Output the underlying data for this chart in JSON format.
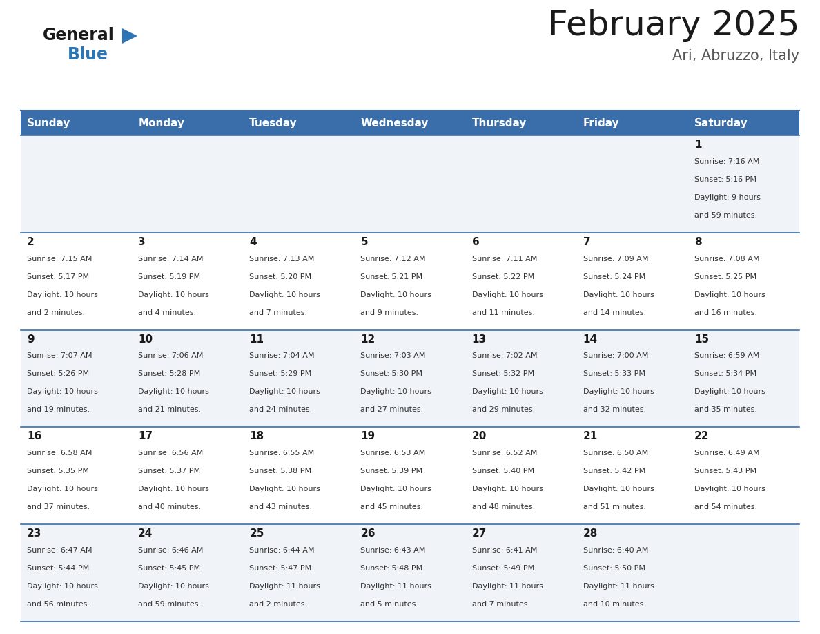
{
  "title": "February 2025",
  "subtitle": "Ari, Abruzzo, Italy",
  "header_color": "#3A6EAA",
  "header_text_color": "#FFFFFF",
  "cell_bg_even": "#FFFFFF",
  "cell_bg_odd": "#F0F4F8",
  "border_color": "#3A6EAA",
  "text_color": "#333333",
  "day_names": [
    "Sunday",
    "Monday",
    "Tuesday",
    "Wednesday",
    "Thursday",
    "Friday",
    "Saturday"
  ],
  "days": [
    {
      "day": 1,
      "col": 6,
      "row": 0,
      "sunrise": "7:16 AM",
      "sunset": "5:16 PM",
      "daylight": "9 hours and 59 minutes."
    },
    {
      "day": 2,
      "col": 0,
      "row": 1,
      "sunrise": "7:15 AM",
      "sunset": "5:17 PM",
      "daylight": "10 hours and 2 minutes."
    },
    {
      "day": 3,
      "col": 1,
      "row": 1,
      "sunrise": "7:14 AM",
      "sunset": "5:19 PM",
      "daylight": "10 hours and 4 minutes."
    },
    {
      "day": 4,
      "col": 2,
      "row": 1,
      "sunrise": "7:13 AM",
      "sunset": "5:20 PM",
      "daylight": "10 hours and 7 minutes."
    },
    {
      "day": 5,
      "col": 3,
      "row": 1,
      "sunrise": "7:12 AM",
      "sunset": "5:21 PM",
      "daylight": "10 hours and 9 minutes."
    },
    {
      "day": 6,
      "col": 4,
      "row": 1,
      "sunrise": "7:11 AM",
      "sunset": "5:22 PM",
      "daylight": "10 hours and 11 minutes."
    },
    {
      "day": 7,
      "col": 5,
      "row": 1,
      "sunrise": "7:09 AM",
      "sunset": "5:24 PM",
      "daylight": "10 hours and 14 minutes."
    },
    {
      "day": 8,
      "col": 6,
      "row": 1,
      "sunrise": "7:08 AM",
      "sunset": "5:25 PM",
      "daylight": "10 hours and 16 minutes."
    },
    {
      "day": 9,
      "col": 0,
      "row": 2,
      "sunrise": "7:07 AM",
      "sunset": "5:26 PM",
      "daylight": "10 hours and 19 minutes."
    },
    {
      "day": 10,
      "col": 1,
      "row": 2,
      "sunrise": "7:06 AM",
      "sunset": "5:28 PM",
      "daylight": "10 hours and 21 minutes."
    },
    {
      "day": 11,
      "col": 2,
      "row": 2,
      "sunrise": "7:04 AM",
      "sunset": "5:29 PM",
      "daylight": "10 hours and 24 minutes."
    },
    {
      "day": 12,
      "col": 3,
      "row": 2,
      "sunrise": "7:03 AM",
      "sunset": "5:30 PM",
      "daylight": "10 hours and 27 minutes."
    },
    {
      "day": 13,
      "col": 4,
      "row": 2,
      "sunrise": "7:02 AM",
      "sunset": "5:32 PM",
      "daylight": "10 hours and 29 minutes."
    },
    {
      "day": 14,
      "col": 5,
      "row": 2,
      "sunrise": "7:00 AM",
      "sunset": "5:33 PM",
      "daylight": "10 hours and 32 minutes."
    },
    {
      "day": 15,
      "col": 6,
      "row": 2,
      "sunrise": "6:59 AM",
      "sunset": "5:34 PM",
      "daylight": "10 hours and 35 minutes."
    },
    {
      "day": 16,
      "col": 0,
      "row": 3,
      "sunrise": "6:58 AM",
      "sunset": "5:35 PM",
      "daylight": "10 hours and 37 minutes."
    },
    {
      "day": 17,
      "col": 1,
      "row": 3,
      "sunrise": "6:56 AM",
      "sunset": "5:37 PM",
      "daylight": "10 hours and 40 minutes."
    },
    {
      "day": 18,
      "col": 2,
      "row": 3,
      "sunrise": "6:55 AM",
      "sunset": "5:38 PM",
      "daylight": "10 hours and 43 minutes."
    },
    {
      "day": 19,
      "col": 3,
      "row": 3,
      "sunrise": "6:53 AM",
      "sunset": "5:39 PM",
      "daylight": "10 hours and 45 minutes."
    },
    {
      "day": 20,
      "col": 4,
      "row": 3,
      "sunrise": "6:52 AM",
      "sunset": "5:40 PM",
      "daylight": "10 hours and 48 minutes."
    },
    {
      "day": 21,
      "col": 5,
      "row": 3,
      "sunrise": "6:50 AM",
      "sunset": "5:42 PM",
      "daylight": "10 hours and 51 minutes."
    },
    {
      "day": 22,
      "col": 6,
      "row": 3,
      "sunrise": "6:49 AM",
      "sunset": "5:43 PM",
      "daylight": "10 hours and 54 minutes."
    },
    {
      "day": 23,
      "col": 0,
      "row": 4,
      "sunrise": "6:47 AM",
      "sunset": "5:44 PM",
      "daylight": "10 hours and 56 minutes."
    },
    {
      "day": 24,
      "col": 1,
      "row": 4,
      "sunrise": "6:46 AM",
      "sunset": "5:45 PM",
      "daylight": "10 hours and 59 minutes."
    },
    {
      "day": 25,
      "col": 2,
      "row": 4,
      "sunrise": "6:44 AM",
      "sunset": "5:47 PM",
      "daylight": "11 hours and 2 minutes."
    },
    {
      "day": 26,
      "col": 3,
      "row": 4,
      "sunrise": "6:43 AM",
      "sunset": "5:48 PM",
      "daylight": "11 hours and 5 minutes."
    },
    {
      "day": 27,
      "col": 4,
      "row": 4,
      "sunrise": "6:41 AM",
      "sunset": "5:49 PM",
      "daylight": "11 hours and 7 minutes."
    },
    {
      "day": 28,
      "col": 5,
      "row": 4,
      "sunrise": "6:40 AM",
      "sunset": "5:50 PM",
      "daylight": "11 hours and 10 minutes."
    }
  ],
  "num_rows": 5,
  "logo_general_color": "#1A1A1A",
  "logo_blue_color": "#2E75B6",
  "logo_triangle_color": "#2E75B6",
  "title_fontsize": 36,
  "subtitle_fontsize": 15,
  "dayname_fontsize": 11,
  "daynum_fontsize": 11,
  "info_fontsize": 8
}
